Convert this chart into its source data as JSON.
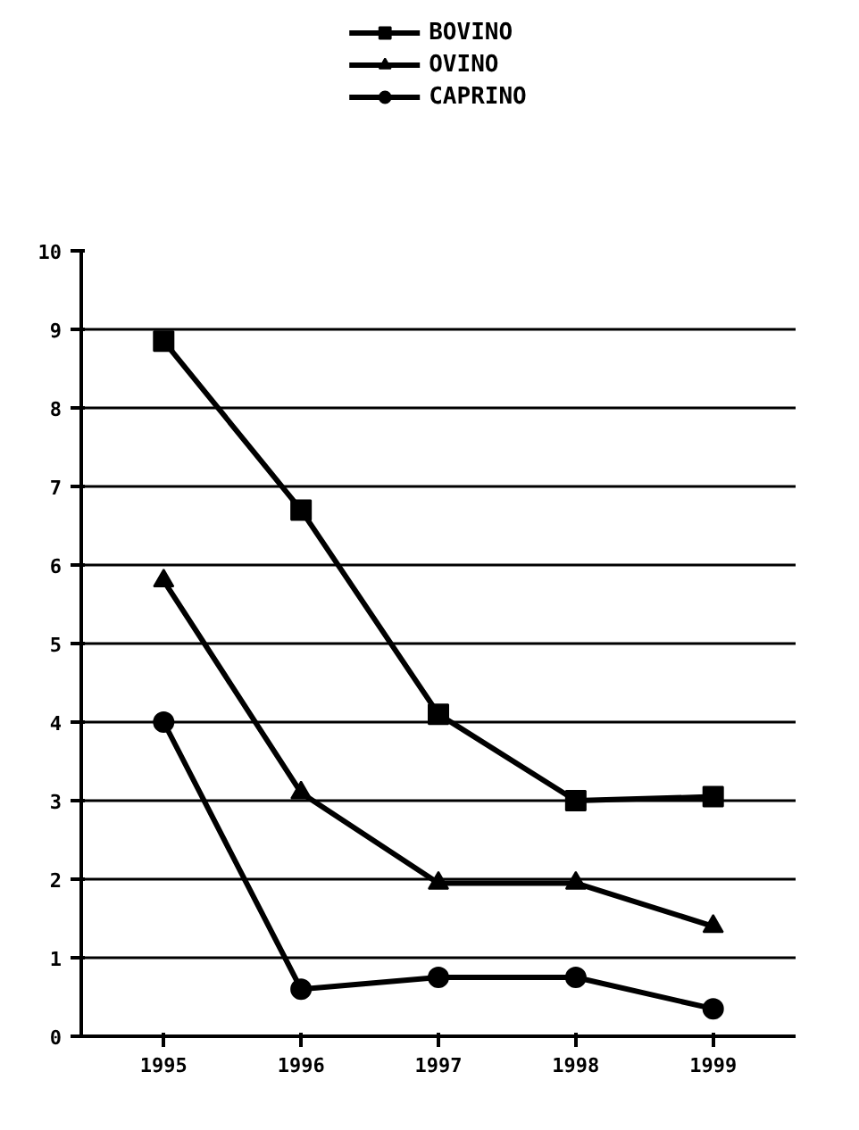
{
  "chart_data": {
    "type": "line",
    "categories": [
      "1995",
      "1996",
      "1997",
      "1998",
      "1999"
    ],
    "series": [
      {
        "name": "BOVINO",
        "color": "#000000",
        "marker": "square",
        "values": [
          8.85,
          6.7,
          4.1,
          3.0,
          3.05
        ]
      },
      {
        "name": "OVINO",
        "color": "#000000",
        "marker": "triangle",
        "values": [
          5.8,
          3.1,
          1.95,
          1.95,
          1.4
        ]
      },
      {
        "name": "CAPRINO",
        "color": "#000000",
        "marker": "circle",
        "values": [
          4.0,
          0.6,
          0.75,
          0.75,
          0.35
        ]
      }
    ],
    "ylim": [
      0,
      10
    ],
    "yticks": [
      0,
      1,
      2,
      3,
      4,
      5,
      6,
      7,
      8,
      9,
      10
    ],
    "grid": "y",
    "legend": "top",
    "line_style": "solid"
  }
}
